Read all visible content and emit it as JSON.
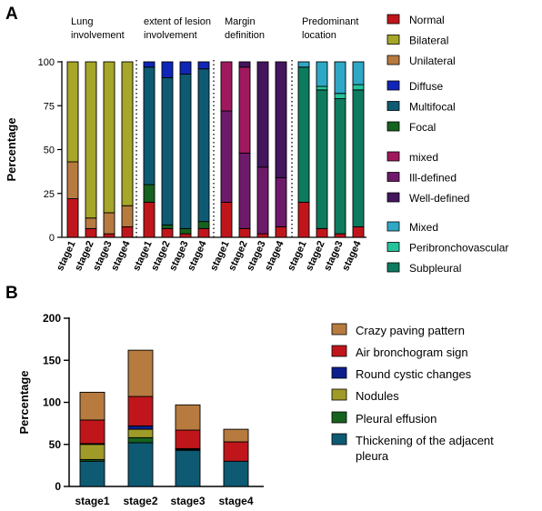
{
  "colors": {
    "Normal": "#C0161B",
    "Bilateral": "#A6A628",
    "Unilateral": "#B77B40",
    "Diffuse": "#1026B8",
    "Multifocal": "#0E5A73",
    "Focal": "#16621F",
    "mixed": "#A0195E",
    "Ill-defined": "#6E1A6A",
    "Well-defined": "#44165E",
    "Mixed": "#2FA8C6",
    "Peribronchovascular": "#25C39A",
    "Subpleural": "#0E7B5E",
    "Crazy paving pattern": "#B77B40",
    "Air bronchogram sign": "#C0161B",
    "Round cystic changes": "#0E1E8C",
    "Nodules": "#A09A28",
    "Pleural effusion": "#16621F",
    "Thickening of the adjacent pleura": "#0E5A73"
  },
  "chart_data": [
    {
      "panel": "A",
      "type": "bar",
      "stacked": true,
      "ylabel": "Percentage",
      "ylim": [
        0,
        100
      ],
      "yticks": [
        0,
        25,
        50,
        75,
        100
      ],
      "categories": [
        "stage1",
        "stage2",
        "stage3",
        "stage4"
      ],
      "groups": [
        {
          "title_lines": [
            "Lung",
            "involvement"
          ],
          "series": [
            {
              "name": "Normal",
              "values": [
                22,
                5,
                2,
                6
              ]
            },
            {
              "name": "Unilateral",
              "values": [
                21,
                6,
                12,
                12
              ]
            },
            {
              "name": "Bilateral",
              "values": [
                57,
                89,
                86,
                82
              ]
            }
          ]
        },
        {
          "title_lines": [
            "extent of lesion",
            "involvement"
          ],
          "series": [
            {
              "name": "Normal",
              "values": [
                20,
                5,
                2,
                5
              ]
            },
            {
              "name": "Focal",
              "values": [
                10,
                2,
                3,
                4
              ]
            },
            {
              "name": "Multifocal",
              "values": [
                67,
                84,
                88,
                87
              ]
            },
            {
              "name": "Diffuse",
              "values": [
                3,
                9,
                7,
                4
              ]
            }
          ]
        },
        {
          "title_lines": [
            "Margin",
            "definition"
          ],
          "series": [
            {
              "name": "Normal",
              "values": [
                20,
                5,
                2,
                6
              ]
            },
            {
              "name": "Ill-defined",
              "values": [
                52,
                43,
                38,
                28
              ]
            },
            {
              "name": "mixed",
              "values": [
                28,
                49,
                0,
                0
              ]
            },
            {
              "name": "Well-defined",
              "values": [
                0,
                3,
                60,
                66
              ]
            }
          ]
        },
        {
          "title_lines": [
            "Predominant",
            "location"
          ],
          "series": [
            {
              "name": "Normal",
              "values": [
                20,
                5,
                2,
                6
              ]
            },
            {
              "name": "Subpleural",
              "values": [
                77,
                79,
                77,
                78
              ]
            },
            {
              "name": "Peribronchovascular",
              "values": [
                0,
                2,
                3,
                3
              ]
            },
            {
              "name": "Mixed",
              "values": [
                3,
                14,
                18,
                13
              ]
            }
          ]
        }
      ],
      "legend": [
        [
          "Normal",
          "Bilateral",
          "Unilateral"
        ],
        [
          "Diffuse",
          "Multifocal",
          "Focal"
        ],
        [
          "mixed",
          "Ill-defined",
          "Well-defined"
        ],
        [
          "Mixed",
          "Peribronchovascular",
          "Subpleural"
        ]
      ],
      "legend_position": "right",
      "grid": false
    },
    {
      "panel": "B",
      "type": "bar",
      "stacked": true,
      "ylabel": "Percentage",
      "ylim": [
        0,
        200
      ],
      "yticks": [
        0,
        50,
        100,
        150,
        200
      ],
      "categories": [
        "stage1",
        "stage2",
        "stage3",
        "stage4"
      ],
      "series": [
        {
          "name": "Thickening of the adjacent pleura",
          "values": [
            30,
            52,
            43,
            30
          ]
        },
        {
          "name": "Pleural effusion",
          "values": [
            2,
            6,
            1,
            0
          ]
        },
        {
          "name": "Nodules",
          "values": [
            18,
            10,
            0,
            0
          ]
        },
        {
          "name": "Round cystic changes",
          "values": [
            1,
            4,
            1,
            0
          ]
        },
        {
          "name": "Air bronchogram sign",
          "values": [
            28,
            35,
            22,
            23
          ]
        },
        {
          "name": "Crazy paving pattern",
          "values": [
            33,
            55,
            30,
            15
          ]
        }
      ],
      "legend": [
        "Crazy paving pattern",
        "Air bronchogram sign",
        "Round cystic changes",
        "Nodules",
        "Pleural effusion",
        "Thickening of the adjacent pleura"
      ],
      "legend_position": "right",
      "grid": false
    }
  ]
}
